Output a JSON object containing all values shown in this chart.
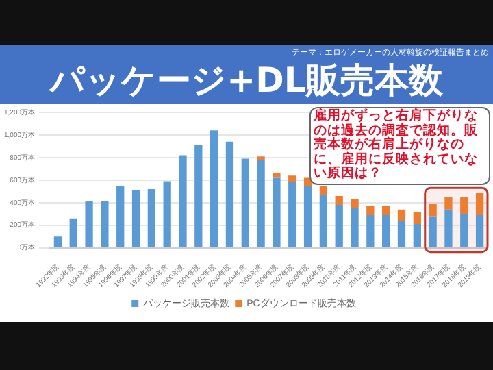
{
  "chart_data": {
    "type": "bar",
    "title": "パッケージ+DL販売本数",
    "stacked": true,
    "legend": "bottom",
    "grid": "y",
    "categories": [
      "1992年度",
      "1993年度",
      "1994年度",
      "1995年度",
      "1996年度",
      "1997年度",
      "1998年度",
      "1999年度",
      "2000年度",
      "2001年度",
      "2002年度",
      "2003年度",
      "2004年度",
      "2005年度",
      "2006年度",
      "2007年度",
      "2008年度",
      "2009年度",
      "2010年度",
      "2011年度",
      "2012年度",
      "2013年度",
      "2014年度",
      "2015年度",
      "2016年度",
      "2017年度",
      "2018年度",
      "2019年度"
    ],
    "series": [
      {
        "name": "パッケージ販売本数",
        "color": "#5b9bd5",
        "values": [
          100,
          260,
          410,
          410,
          550,
          510,
          520,
          590,
          820,
          910,
          1040,
          940,
          790,
          780,
          620,
          580,
          550,
          470,
          380,
          350,
          290,
          290,
          240,
          210,
          280,
          340,
          300,
          290
        ]
      },
      {
        "name": "PCダウンロード販売本数",
        "color": "#ed7d31",
        "values": [
          0,
          0,
          0,
          0,
          0,
          0,
          0,
          0,
          0,
          0,
          0,
          0,
          0,
          30,
          40,
          60,
          70,
          80,
          80,
          80,
          80,
          80,
          100,
          110,
          110,
          110,
          150,
          200
        ]
      }
    ],
    "ylim": [
      0,
      1200
    ],
    "yticks": [
      {
        "value": 0,
        "label": "0万本"
      },
      {
        "value": 200,
        "label": "200万本"
      },
      {
        "value": 400,
        "label": "400万本"
      },
      {
        "value": 600,
        "label": "600万本"
      },
      {
        "value": 800,
        "label": "800万本"
      },
      {
        "value": 1000,
        "label": "1,000万本"
      },
      {
        "value": 1200,
        "label": "1,200万本"
      }
    ],
    "bands": [
      {
        "axis": "x",
        "from": "2016年度",
        "to": "2019年度",
        "color": "#c0392b"
      }
    ],
    "annotations": [
      "テーマ：エロゲメーカーの人材斡旋の検証報告まとめ",
      "雇用がずっと右肩下がりなのは過去の調査で認知。販売本数が右肩上がりなのに、雇用に反映されていない原因は？"
    ]
  }
}
